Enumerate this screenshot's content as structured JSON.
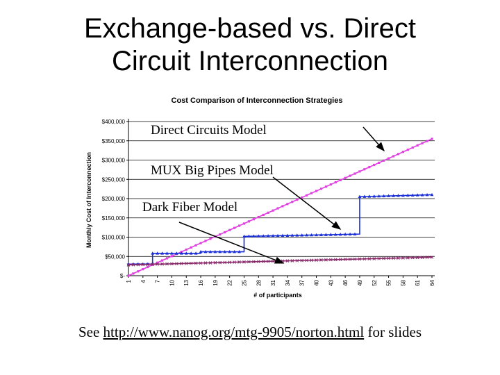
{
  "slide": {
    "title_line1": "Exchange-based vs. Direct",
    "title_line2": "Circuit Interconnection",
    "footer_prefix": "See ",
    "footer_link": "http://www.nanog.org/mtg-9905/norton.html",
    "footer_suffix": " for slides"
  },
  "annotations": {
    "direct": "Direct Circuits Model",
    "mux": "MUX Big Pipes Model",
    "fiber": "Dark Fiber Model"
  },
  "colors": {
    "direct": "#e040e0",
    "mux": "#1a2fd8",
    "fiber": "#8a2a6a"
  },
  "chart_data": {
    "type": "line",
    "title": "Cost Comparison of Interconnection Strategies",
    "xlabel": "# of participants",
    "ylabel": "Monthly Cost of Interconnection",
    "ylim": [
      0,
      400000
    ],
    "y_ticks": [
      "$-",
      "$50,000",
      "$100,000",
      "$150,000",
      "$200,000",
      "$250,000",
      "$300,000",
      "$350,000",
      "$400,000"
    ],
    "x_ticks": [
      "1",
      "4",
      "7",
      "10",
      "13",
      "16",
      "19",
      "22",
      "25",
      "28",
      "31",
      "34",
      "37",
      "40",
      "43",
      "46",
      "49",
      "52",
      "55",
      "58",
      "61",
      "64"
    ],
    "xlim": [
      1,
      64
    ],
    "series": [
      {
        "name": "Direct Circuits Model",
        "key": "direct",
        "marker": "square",
        "x": [
          1,
          64
        ],
        "y": [
          0,
          355000
        ]
      },
      {
        "name": "MUX Big Pipes Model",
        "key": "mux",
        "marker": "triangle",
        "x": [
          1,
          6,
          6,
          16,
          16,
          25,
          25,
          49,
          49,
          64
        ],
        "y": [
          30000,
          30000,
          58000,
          58000,
          62000,
          62000,
          102000,
          108000,
          205000,
          210000
        ]
      },
      {
        "name": "Dark Fiber Model",
        "key": "fiber",
        "marker": "x",
        "x": [
          1,
          64
        ],
        "y": [
          28000,
          48000
        ]
      }
    ]
  }
}
